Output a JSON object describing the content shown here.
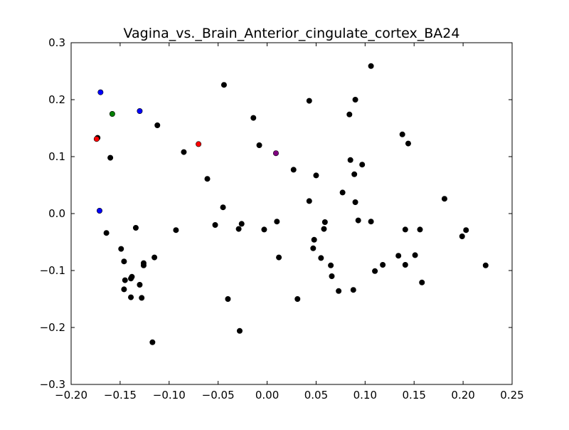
{
  "chart_data": {
    "type": "scatter",
    "title": "Vagina_vs._Brain_Anterior_cingulate_cortex_BA24",
    "xlabel": "",
    "ylabel": "",
    "xlim": [
      -0.2,
      0.25
    ],
    "ylim": [
      -0.3,
      0.3
    ],
    "x_ticks": [
      -0.2,
      -0.15,
      -0.1,
      -0.05,
      0.0,
      0.05,
      0.1,
      0.15,
      0.2,
      0.25
    ],
    "x_tick_labels": [
      "−0.20",
      "−0.15",
      "−0.10",
      "−0.05",
      "0.00",
      "0.05",
      "0.10",
      "0.15",
      "0.20",
      "0.25"
    ],
    "y_ticks": [
      -0.3,
      -0.2,
      -0.1,
      0.0,
      0.1,
      0.2,
      0.3
    ],
    "y_tick_labels": [
      "−0.3",
      "−0.2",
      "−0.1",
      "0.0",
      "0.1",
      "0.2",
      "0.3"
    ],
    "grid": false,
    "legend": "none",
    "series": [
      {
        "color": "#000000",
        "points": [
          [
            -0.173,
            0.133
          ],
          [
            -0.16,
            0.098
          ],
          [
            -0.164,
            -0.034
          ],
          [
            -0.149,
            -0.062
          ],
          [
            -0.146,
            -0.084
          ],
          [
            -0.145,
            -0.117
          ],
          [
            -0.146,
            -0.133
          ],
          [
            -0.139,
            -0.147
          ],
          [
            -0.139,
            -0.114
          ],
          [
            -0.138,
            -0.111
          ],
          [
            -0.134,
            -0.025
          ],
          [
            -0.13,
            -0.125
          ],
          [
            -0.128,
            -0.148
          ],
          [
            -0.126,
            -0.087
          ],
          [
            -0.126,
            -0.091
          ],
          [
            -0.117,
            -0.226
          ],
          [
            -0.115,
            -0.077
          ],
          [
            -0.112,
            0.155
          ],
          [
            -0.093,
            -0.029
          ],
          [
            -0.085,
            0.108
          ],
          [
            -0.061,
            0.061
          ],
          [
            -0.053,
            -0.02
          ],
          [
            -0.044,
            0.226
          ],
          [
            -0.045,
            0.011
          ],
          [
            -0.04,
            -0.15
          ],
          [
            -0.029,
            -0.027
          ],
          [
            -0.026,
            -0.018
          ],
          [
            -0.028,
            -0.206
          ],
          [
            -0.014,
            0.168
          ],
          [
            -0.008,
            0.12
          ],
          [
            -0.003,
            -0.028
          ],
          [
            0.01,
            -0.014
          ],
          [
            0.012,
            -0.077
          ],
          [
            0.027,
            0.077
          ],
          [
            0.031,
            -0.15
          ],
          [
            0.043,
            0.198
          ],
          [
            0.043,
            0.022
          ],
          [
            0.047,
            -0.061
          ],
          [
            0.048,
            -0.046
          ],
          [
            0.05,
            0.067
          ],
          [
            0.055,
            -0.078
          ],
          [
            0.058,
            -0.027
          ],
          [
            0.059,
            -0.015
          ],
          [
            0.065,
            -0.091
          ],
          [
            0.066,
            -0.11
          ],
          [
            0.073,
            -0.136
          ],
          [
            0.077,
            0.037
          ],
          [
            0.084,
            0.174
          ],
          [
            0.085,
            0.094
          ],
          [
            0.088,
            -0.134
          ],
          [
            0.089,
            0.069
          ],
          [
            0.09,
            0.2
          ],
          [
            0.09,
            0.02
          ],
          [
            0.093,
            -0.012
          ],
          [
            0.097,
            0.086
          ],
          [
            0.106,
            0.259
          ],
          [
            0.106,
            -0.014
          ],
          [
            0.11,
            -0.101
          ],
          [
            0.118,
            -0.09
          ],
          [
            0.134,
            -0.074
          ],
          [
            0.138,
            0.139
          ],
          [
            0.141,
            -0.028
          ],
          [
            0.141,
            -0.09
          ],
          [
            0.144,
            0.123
          ],
          [
            0.151,
            -0.073
          ],
          [
            0.156,
            -0.028
          ],
          [
            0.158,
            -0.121
          ],
          [
            0.181,
            0.026
          ],
          [
            0.199,
            -0.04
          ],
          [
            0.203,
            -0.029
          ],
          [
            0.223,
            -0.091
          ]
        ]
      },
      {
        "color": "#0000ff",
        "points": [
          [
            -0.17,
            0.213
          ],
          [
            -0.13,
            0.18
          ],
          [
            -0.171,
            0.005
          ]
        ]
      },
      {
        "color": "#008000",
        "points": [
          [
            -0.158,
            0.175
          ]
        ]
      },
      {
        "color": "#ff0000",
        "points": [
          [
            -0.174,
            0.131
          ],
          [
            -0.07,
            0.122
          ]
        ]
      },
      {
        "color": "#800080",
        "points": [
          [
            0.009,
            0.106
          ]
        ]
      }
    ]
  }
}
